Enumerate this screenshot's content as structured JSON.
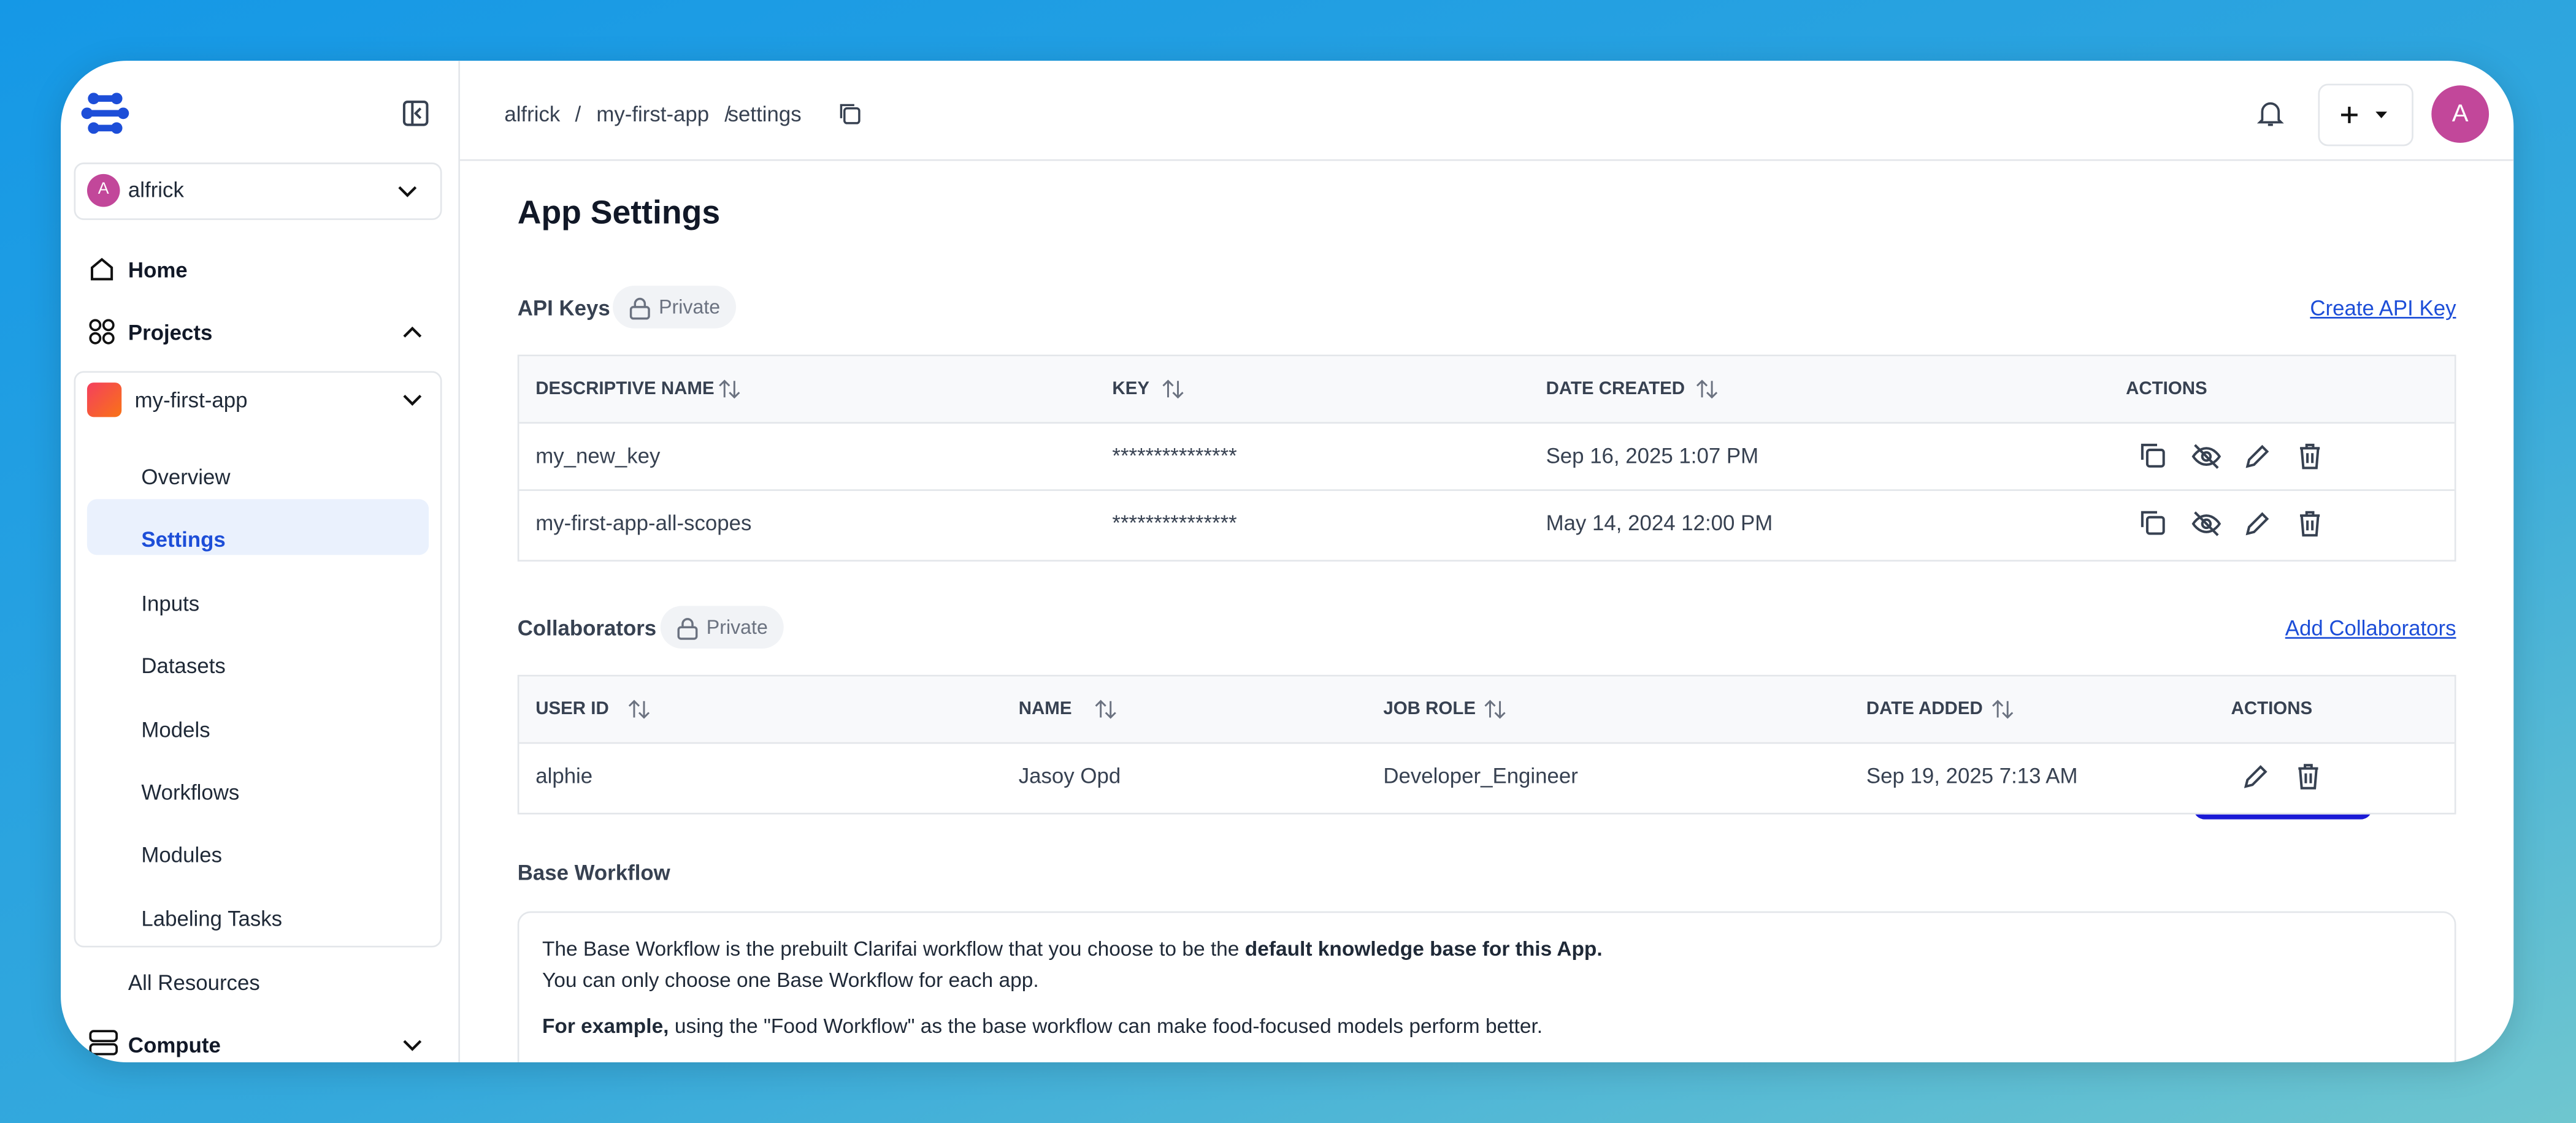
{
  "sidebar": {
    "org": {
      "avatar": "A",
      "name": "alfrick"
    },
    "home": "Home",
    "projects": "Projects",
    "project": "my-first-app",
    "project_items": [
      "Overview",
      "Settings",
      "Inputs",
      "Datasets",
      "Models",
      "Workflows",
      "Modules",
      "Labeling Tasks"
    ],
    "all_resources": "All Resources",
    "compute": "Compute"
  },
  "header": {
    "breadcrumb": [
      "alfrick",
      "my-first-app",
      "settings"
    ],
    "avatar": "A"
  },
  "page": {
    "title": "App Settings"
  },
  "api_keys": {
    "title": "API Keys",
    "badge": "Private",
    "action": "Create API Key",
    "columns": [
      "DESCRIPTIVE NAME",
      "KEY",
      "DATE CREATED",
      "ACTIONS"
    ],
    "rows": [
      [
        "my_new_key",
        "***************",
        "Sep 16, 2025 1:07 PM"
      ],
      [
        "my-first-app-all-scopes",
        "***************",
        "May 14, 2024 12:00 PM"
      ]
    ]
  },
  "collaborators": {
    "title": "Collaborators",
    "badge": "Private",
    "action": "Add Collaborators",
    "columns": [
      "USER ID",
      "NAME",
      "JOB ROLE",
      "DATE ADDED",
      "ACTIONS"
    ],
    "rows": [
      [
        "alphie",
        "Jasoy Opd",
        "Developer_Engineer",
        "Sep 19, 2025 7:13 AM"
      ]
    ]
  },
  "base_workflow": {
    "title": "Base Workflow",
    "paragraphs": [
      [
        "The Base Workflow is the prebuilt Clarifai workflow that you choose to be the ",
        "default knowledge base for this App."
      ],
      [
        "You can only choose one Base Workflow for each app."
      ],
      [
        "For example,",
        " using the \"Food Workflow\" as the base workflow can make food-focused models perform better."
      ]
    ]
  }
}
